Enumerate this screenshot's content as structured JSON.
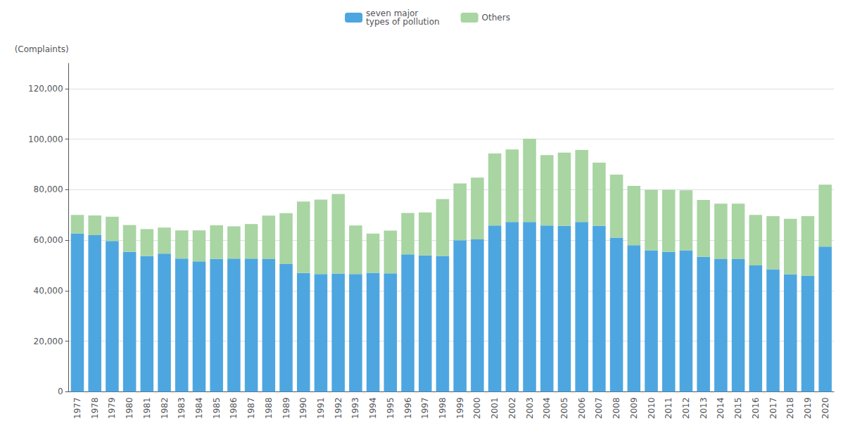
{
  "chart_data": {
    "type": "bar",
    "categories": [
      "1977",
      "1978",
      "1979",
      "1980",
      "1981",
      "1982",
      "1983",
      "1984",
      "1985",
      "1986",
      "1987",
      "1988",
      "1989",
      "1990",
      "1991",
      "1992",
      "1993",
      "1994",
      "1995",
      "1996",
      "1997",
      "1998",
      "1999",
      "2000",
      "2001",
      "2002",
      "2003",
      "2004",
      "2005",
      "2006",
      "2007",
      "2008",
      "2009",
      "2010",
      "2011",
      "2012",
      "2013",
      "2014",
      "2015",
      "2016",
      "2017",
      "2018",
      "2019",
      "2020"
    ],
    "series": [
      {
        "name": "seven major\ntypes of pollution",
        "color": "#4da6e0",
        "values": [
          62700,
          62000,
          59700,
          55400,
          53700,
          54700,
          52700,
          51600,
          52600,
          52700,
          52700,
          52500,
          50600,
          47000,
          46600,
          46800,
          46600,
          47100,
          46900,
          54400,
          54000,
          53800,
          60000,
          60300,
          65800,
          67200,
          67200,
          65800,
          65700,
          67200,
          65700,
          61000,
          58000,
          56000,
          55400,
          56000,
          53400,
          52500,
          52500,
          50000,
          48500,
          46500,
          46000,
          57500
        ]
      },
      {
        "name": "Others",
        "color": "#a8d5a2",
        "values": [
          7300,
          7800,
          9600,
          10600,
          10700,
          10300,
          11200,
          12300,
          13300,
          12800,
          13700,
          17200,
          20100,
          28300,
          29500,
          31500,
          19200,
          15500,
          16900,
          16400,
          17000,
          22500,
          22500,
          24500,
          28500,
          28700,
          33000,
          27900,
          29000,
          28500,
          25000,
          25000,
          23500,
          24000,
          24600,
          23800,
          22500,
          22000,
          22000,
          20000,
          21000,
          22000,
          23500,
          24500
        ]
      }
    ],
    "ylabel": "(Complaints)",
    "ylim": [
      0,
      130000
    ],
    "yticks": [
      0,
      {
        "value": 20000,
        "label": "20,000"
      },
      {
        "value": 40000,
        "label": "40,000"
      },
      {
        "value": 60000,
        "label": "60,000"
      },
      {
        "value": 80000,
        "label": "80,000"
      },
      {
        "value": 100000,
        "label": "100,000"
      },
      {
        "value": 120000,
        "label": "120,000"
      }
    ],
    "stacked": true,
    "grid": true,
    "legend": "upper center"
  }
}
